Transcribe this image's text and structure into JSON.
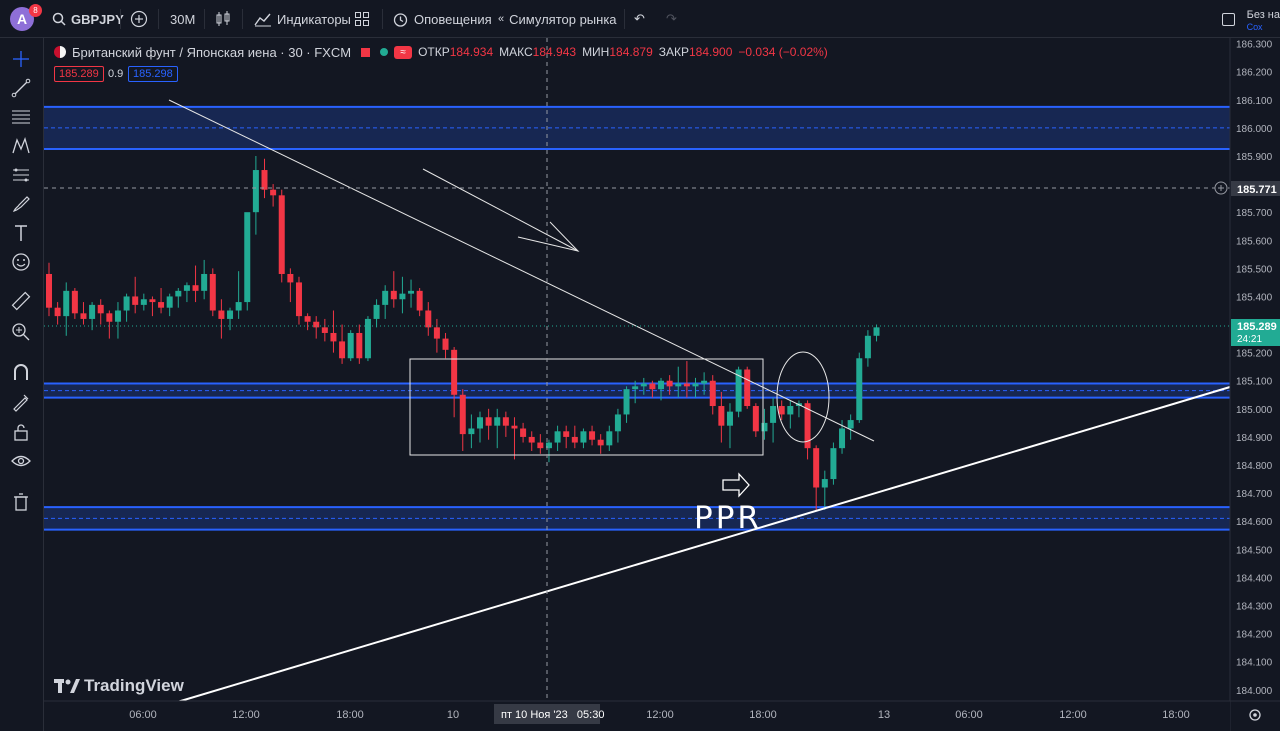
{
  "app": {
    "avatar_letter": "A",
    "notifications": "8",
    "symbol": "GBPJPY",
    "interval": "30M",
    "indicators_label": "Индикаторы",
    "alerts_label": "Оповещения",
    "replay_label": "Симулятор рынка",
    "layout_name": "Без на",
    "layout_status": "Сох"
  },
  "legend": {
    "title": "Британский фунт / Японская иена · 30 · FXCM",
    "open_label": "ОТКР",
    "open_value": "184.934",
    "high_label": "МАКС",
    "high_value": "184.943",
    "low_label": "МИН",
    "low_value": "184.879",
    "close_label": "ЗАКР",
    "close_value": "184.900",
    "change": "−0.034 (−0.02%)",
    "sell_price": "185.289",
    "spread": "0.9",
    "buy_price": "185.298"
  },
  "price_axis": {
    "ticks": [
      "186.300",
      "186.200",
      "186.100",
      "186.000",
      "185.900",
      "185.800",
      "185.700",
      "185.600",
      "185.500",
      "185.400",
      "185.300",
      "185.200",
      "185.100",
      "185.000",
      "184.900",
      "184.800",
      "184.700",
      "184.600",
      "184.500",
      "184.400",
      "184.300",
      "184.200",
      "184.100",
      "184.000"
    ],
    "crosshair_price": "185.771",
    "last_price": "185.289",
    "countdown": "24:21"
  },
  "time_axis": {
    "ticks": [
      "06:00",
      "12:00",
      "18:00",
      "10",
      "12:00",
      "18:00",
      "13",
      "06:00",
      "12:00",
      "18:00"
    ],
    "crosshair_label": "пт 10 Ноя '23   05:30"
  },
  "annotation_text": "PPR",
  "branding": "TradingView",
  "colors": {
    "up": "#22ab94",
    "down": "#f23645",
    "zone": "#2962ff",
    "background": "#131722"
  },
  "chart_data": {
    "type": "candlestick",
    "symbol": "GBPJPY",
    "timeframe": "30",
    "ylim": [
      183.96,
      186.32
    ],
    "zones": [
      {
        "from": 185.925,
        "to": 186.075
      },
      {
        "from": 185.04,
        "to": 185.09
      },
      {
        "from": 184.57,
        "to": 184.65
      }
    ],
    "candles": [
      [
        185.48,
        185.52,
        185.33,
        185.36
      ],
      [
        185.36,
        185.38,
        185.3,
        185.33
      ],
      [
        185.33,
        185.45,
        185.26,
        185.42
      ],
      [
        185.42,
        185.43,
        185.32,
        185.34
      ],
      [
        185.34,
        185.38,
        185.3,
        185.32
      ],
      [
        185.32,
        185.38,
        185.28,
        185.37
      ],
      [
        185.37,
        185.39,
        185.3,
        185.34
      ],
      [
        185.34,
        185.35,
        185.25,
        185.31
      ],
      [
        185.31,
        185.38,
        185.25,
        185.35
      ],
      [
        185.35,
        185.41,
        185.31,
        185.4
      ],
      [
        185.4,
        185.47,
        185.34,
        185.37
      ],
      [
        185.37,
        185.41,
        185.35,
        185.39
      ],
      [
        185.39,
        185.4,
        185.33,
        185.38
      ],
      [
        185.38,
        185.43,
        185.34,
        185.36
      ],
      [
        185.36,
        185.41,
        185.33,
        185.4
      ],
      [
        185.4,
        185.43,
        185.36,
        185.42
      ],
      [
        185.42,
        185.45,
        185.38,
        185.44
      ],
      [
        185.44,
        185.51,
        185.38,
        185.42
      ],
      [
        185.42,
        185.53,
        185.39,
        185.48
      ],
      [
        185.48,
        185.5,
        185.33,
        185.35
      ],
      [
        185.35,
        185.39,
        185.25,
        185.32
      ],
      [
        185.32,
        185.36,
        185.28,
        185.35
      ],
      [
        185.35,
        185.49,
        185.32,
        185.38
      ],
      [
        185.38,
        185.68,
        185.35,
        185.7
      ],
      [
        185.7,
        185.9,
        185.62,
        185.85
      ],
      [
        185.85,
        185.89,
        185.75,
        185.78
      ],
      [
        185.78,
        185.8,
        185.72,
        185.76
      ],
      [
        185.76,
        185.78,
        185.45,
        185.48
      ],
      [
        185.48,
        185.5,
        185.38,
        185.45
      ],
      [
        185.45,
        185.47,
        185.3,
        185.33
      ],
      [
        185.33,
        185.34,
        185.28,
        185.31
      ],
      [
        185.31,
        185.33,
        185.25,
        185.29
      ],
      [
        185.29,
        185.32,
        185.24,
        185.27
      ],
      [
        185.27,
        185.35,
        185.2,
        185.24
      ],
      [
        185.24,
        185.3,
        185.16,
        185.18
      ],
      [
        185.18,
        185.28,
        185.17,
        185.27
      ],
      [
        185.27,
        185.3,
        185.16,
        185.18
      ],
      [
        185.18,
        185.33,
        185.17,
        185.32
      ],
      [
        185.32,
        185.39,
        185.29,
        185.37
      ],
      [
        185.37,
        185.44,
        185.32,
        185.42
      ],
      [
        185.42,
        185.49,
        185.36,
        185.39
      ],
      [
        185.39,
        185.47,
        185.34,
        185.41
      ],
      [
        185.41,
        185.46,
        185.36,
        185.42
      ],
      [
        185.42,
        185.43,
        185.33,
        185.35
      ],
      [
        185.35,
        185.38,
        185.26,
        185.29
      ],
      [
        185.29,
        185.32,
        185.2,
        185.25
      ],
      [
        185.25,
        185.27,
        185.18,
        185.21
      ],
      [
        185.21,
        185.22,
        184.97,
        185.05
      ],
      [
        185.05,
        185.07,
        184.85,
        184.91
      ],
      [
        184.91,
        184.98,
        184.86,
        184.93
      ],
      [
        184.93,
        184.99,
        184.88,
        184.97
      ],
      [
        184.97,
        185.0,
        184.89,
        184.94
      ],
      [
        184.94,
        185.0,
        184.86,
        184.97
      ],
      [
        184.97,
        184.99,
        184.9,
        184.94
      ],
      [
        184.94,
        184.97,
        184.82,
        184.93
      ],
      [
        184.93,
        184.95,
        184.88,
        184.9
      ],
      [
        184.9,
        184.92,
        184.85,
        184.88
      ],
      [
        184.88,
        184.91,
        184.84,
        184.86
      ],
      [
        184.86,
        184.89,
        184.81,
        184.88
      ],
      [
        184.88,
        184.94,
        184.85,
        184.92
      ],
      [
        184.92,
        184.94,
        184.86,
        184.9
      ],
      [
        184.9,
        184.94,
        184.86,
        184.88
      ],
      [
        184.88,
        184.93,
        184.86,
        184.92
      ],
      [
        184.92,
        184.94,
        184.87,
        184.89
      ],
      [
        184.89,
        184.91,
        184.84,
        184.87
      ],
      [
        184.87,
        184.94,
        184.85,
        184.92
      ],
      [
        184.92,
        185.0,
        184.88,
        184.98
      ],
      [
        184.98,
        185.08,
        184.95,
        185.07
      ],
      [
        185.07,
        185.1,
        185.02,
        185.08
      ],
      [
        185.08,
        185.11,
        185.05,
        185.09
      ],
      [
        185.09,
        185.1,
        185.04,
        185.07
      ],
      [
        185.07,
        185.11,
        185.03,
        185.1
      ],
      [
        185.1,
        185.12,
        185.05,
        185.08
      ],
      [
        185.08,
        185.15,
        185.04,
        185.09
      ],
      [
        185.09,
        185.17,
        185.04,
        185.08
      ],
      [
        185.08,
        185.11,
        185.04,
        185.09
      ],
      [
        185.09,
        185.13,
        185.05,
        185.1
      ],
      [
        185.1,
        185.12,
        184.98,
        185.01
      ],
      [
        185.01,
        185.06,
        184.88,
        184.94
      ],
      [
        184.94,
        185.02,
        184.86,
        184.99
      ],
      [
        184.99,
        185.15,
        184.97,
        185.14
      ],
      [
        185.14,
        185.15,
        185.0,
        185.01
      ],
      [
        185.01,
        185.02,
        184.9,
        184.92
      ],
      [
        184.92,
        185.0,
        184.89,
        184.95
      ],
      [
        184.95,
        185.04,
        184.88,
        185.01
      ],
      [
        185.01,
        185.03,
        184.96,
        184.98
      ],
      [
        184.98,
        185.03,
        184.93,
        185.01
      ],
      [
        185.01,
        185.03,
        184.97,
        185.02
      ],
      [
        185.02,
        185.03,
        184.82,
        184.86
      ],
      [
        184.86,
        184.87,
        184.64,
        184.72
      ],
      [
        184.72,
        184.78,
        184.64,
        184.75
      ],
      [
        184.75,
        184.88,
        184.73,
        184.86
      ],
      [
        184.86,
        184.96,
        184.84,
        184.93
      ],
      [
        184.93,
        184.98,
        184.89,
        184.96
      ],
      [
        184.96,
        185.2,
        184.95,
        185.18
      ],
      [
        185.18,
        185.28,
        185.15,
        185.26
      ],
      [
        185.26,
        185.3,
        185.24,
        185.29
      ]
    ]
  }
}
